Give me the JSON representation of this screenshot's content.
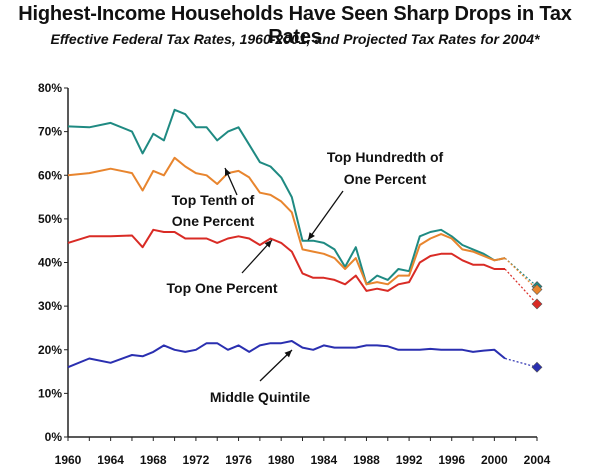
{
  "chart_data": {
    "type": "line",
    "title": "Highest-Income Households Have Seen Sharp Drops in Tax Rates",
    "subtitle": "Effective Federal Tax Rates, 1960-2001, and Projected Tax Rates for 2004*",
    "xlabel": "",
    "ylabel": "",
    "xlim": [
      1960,
      2004
    ],
    "ylim": [
      0,
      80
    ],
    "x_ticks": [
      "1960",
      "1964",
      "1968",
      "1972",
      "1976",
      "1980",
      "1984",
      "1988",
      "1992",
      "1996",
      "2000",
      "2004"
    ],
    "y_ticks": [
      "0%",
      "10%",
      "20%",
      "30%",
      "40%",
      "50%",
      "60%",
      "70%",
      "80%"
    ],
    "grid": false,
    "series": [
      {
        "name": "Top Hundredth of One Percent",
        "color": "#1f8a82",
        "x": [
          1960,
          1962,
          1964,
          1966,
          1967,
          1968,
          1969,
          1970,
          1971,
          1972,
          1973,
          1974,
          1975,
          1976,
          1977,
          1978,
          1979,
          1980,
          1981,
          1982,
          1983,
          1984,
          1985,
          1986,
          1987,
          1988,
          1989,
          1990,
          1991,
          1992,
          1993,
          1994,
          1995,
          1996,
          1997,
          1998,
          1999,
          2000,
          2001
        ],
        "values": [
          71.2,
          71.0,
          72.0,
          70.0,
          65.0,
          69.5,
          68.0,
          75.0,
          74.0,
          71.0,
          71.0,
          68.0,
          70.0,
          71.0,
          67.0,
          63.0,
          62.0,
          59.5,
          55.0,
          45.0,
          45.0,
          44.5,
          43.0,
          39.0,
          43.5,
          35.0,
          37.0,
          36.0,
          38.5,
          38.0,
          46.0,
          47.0,
          47.5,
          46.0,
          44.0,
          43.0,
          42.0,
          40.5,
          41.0
        ],
        "projected": {
          "x": 2004,
          "value": 34.5
        }
      },
      {
        "name": "Top Tenth of One Percent",
        "color": "#e8852e",
        "x": [
          1960,
          1962,
          1964,
          1966,
          1967,
          1968,
          1969,
          1970,
          1971,
          1972,
          1973,
          1974,
          1975,
          1976,
          1977,
          1978,
          1979,
          1980,
          1981,
          1982,
          1983,
          1984,
          1985,
          1986,
          1987,
          1988,
          1989,
          1990,
          1991,
          1992,
          1993,
          1994,
          1995,
          1996,
          1997,
          1998,
          1999,
          2000,
          2001
        ],
        "values": [
          60.0,
          60.5,
          61.5,
          60.5,
          56.5,
          61.0,
          60.0,
          64.0,
          62.0,
          60.5,
          60.0,
          58.0,
          60.5,
          61.0,
          59.5,
          56.0,
          55.5,
          54.0,
          51.5,
          43.0,
          42.5,
          42.0,
          41.0,
          38.5,
          41.0,
          35.0,
          35.5,
          35.0,
          37.0,
          37.0,
          44.0,
          45.5,
          46.5,
          45.5,
          43.0,
          42.5,
          41.5,
          40.5,
          41.0
        ],
        "projected": {
          "x": 2004,
          "value": 33.8
        }
      },
      {
        "name": "Top One Percent",
        "color": "#d92b25",
        "x": [
          1960,
          1962,
          1964,
          1966,
          1967,
          1968,
          1969,
          1970,
          1971,
          1972,
          1973,
          1974,
          1975,
          1976,
          1977,
          1978,
          1979,
          1980,
          1981,
          1982,
          1983,
          1984,
          1985,
          1986,
          1987,
          1988,
          1989,
          1990,
          1991,
          1992,
          1993,
          1994,
          1995,
          1996,
          1997,
          1998,
          1999,
          2000,
          2001
        ],
        "values": [
          44.5,
          46.0,
          46.0,
          46.2,
          43.5,
          47.5,
          47.0,
          47.0,
          45.5,
          45.5,
          45.5,
          44.5,
          45.5,
          46.0,
          45.5,
          44.0,
          45.5,
          44.5,
          42.5,
          37.5,
          36.5,
          36.5,
          36.0,
          35.0,
          37.0,
          33.5,
          34.0,
          33.5,
          35.0,
          35.5,
          40.0,
          41.5,
          42.0,
          42.0,
          40.5,
          39.5,
          39.5,
          38.5,
          38.5
        ],
        "projected": {
          "x": 2004,
          "value": 30.5
        }
      },
      {
        "name": "Middle Quintile",
        "color": "#2a2fb0",
        "x": [
          1960,
          1962,
          1964,
          1966,
          1967,
          1968,
          1969,
          1970,
          1971,
          1972,
          1973,
          1974,
          1975,
          1976,
          1977,
          1978,
          1979,
          1980,
          1981,
          1982,
          1983,
          1984,
          1985,
          1986,
          1987,
          1988,
          1989,
          1990,
          1991,
          1992,
          1993,
          1994,
          1995,
          1996,
          1997,
          1998,
          1999,
          2000,
          2001
        ],
        "values": [
          16.0,
          18.0,
          17.0,
          18.8,
          18.5,
          19.5,
          21.0,
          20.0,
          19.5,
          20.0,
          21.5,
          21.5,
          20.0,
          21.0,
          19.5,
          21.0,
          21.5,
          21.5,
          22.0,
          20.5,
          20.0,
          21.0,
          20.5,
          20.5,
          20.5,
          21.0,
          21.0,
          20.8,
          20.0,
          20.0,
          20.0,
          20.2,
          20.0,
          20.0,
          20.0,
          19.5,
          19.8,
          20.0,
          18.0
        ],
        "projected": {
          "x": 2004,
          "value": 16.0
        }
      }
    ],
    "annotations": [
      {
        "text": "Top Hundredth of",
        "series": 0
      },
      {
        "text": "One Percent",
        "series": 0
      },
      {
        "text": "Top Tenth of",
        "series": 1
      },
      {
        "text": "One Percent",
        "series": 1
      },
      {
        "text": "Top One Percent",
        "series": 2
      },
      {
        "text": "Middle Quintile",
        "series": 3
      }
    ]
  }
}
